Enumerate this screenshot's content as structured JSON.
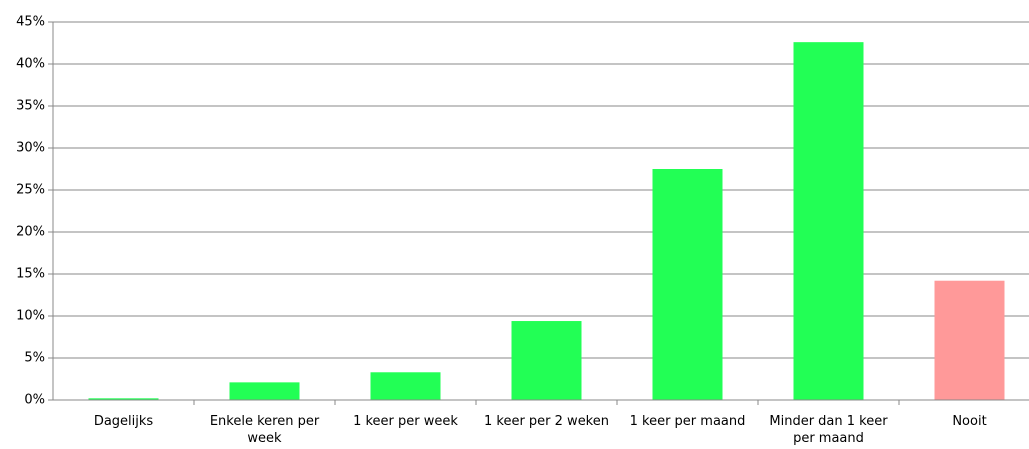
{
  "chart_data": {
    "type": "bar",
    "categories": [
      "Dagelijks",
      "Enkele keren per week",
      "1 keer per week",
      "1 keer per 2 weken",
      "1 keer per maand",
      "Minder dan 1 keer per maand",
      "Nooit"
    ],
    "values": [
      0.2,
      2.1,
      3.3,
      9.4,
      27.5,
      42.6,
      14.2
    ],
    "colors": [
      "#22ff55",
      "#22ff55",
      "#22ff55",
      "#22ff55",
      "#22ff55",
      "#22ff55",
      "#ff9999"
    ],
    "ylim": [
      0,
      45
    ],
    "yticks": [
      {
        "value": 0,
        "label": "0%"
      },
      {
        "value": 5,
        "label": "5%"
      },
      {
        "value": 10,
        "label": "10%"
      },
      {
        "value": 15,
        "label": "15%"
      },
      {
        "value": 20,
        "label": "20%"
      },
      {
        "value": 25,
        "label": "25%"
      },
      {
        "value": 30,
        "label": "30%"
      },
      {
        "value": 35,
        "label": "35%"
      },
      {
        "value": 40,
        "label": "40%"
      },
      {
        "value": 45,
        "label": "45%"
      }
    ],
    "grid": true
  }
}
